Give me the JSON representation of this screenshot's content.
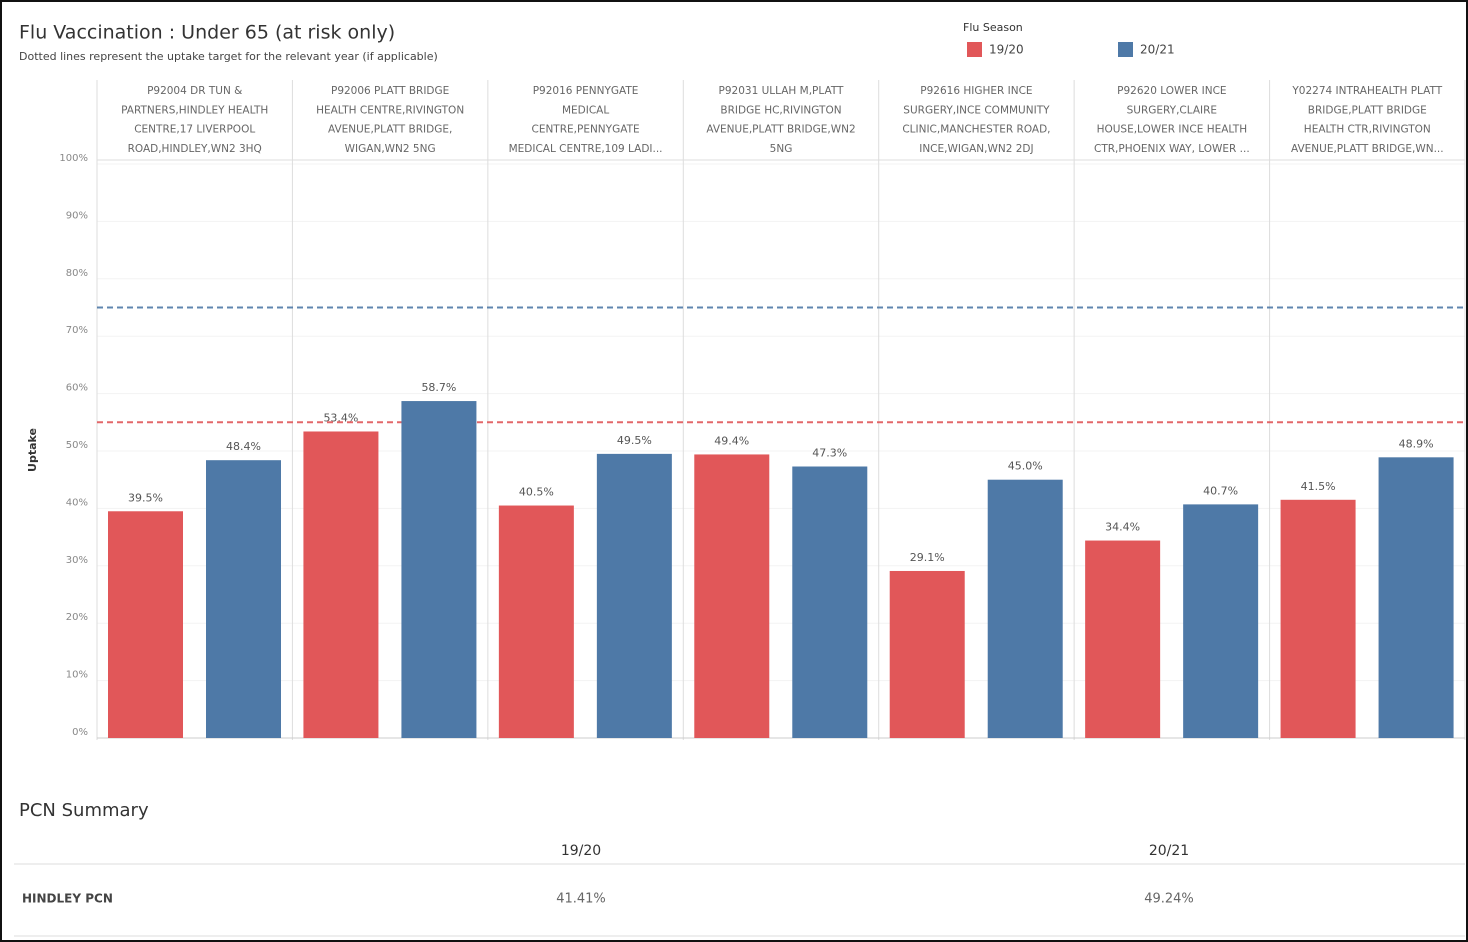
{
  "chart_data": {
    "type": "bar",
    "title": "Flu Vaccination : Under 65 (at risk only)",
    "subtitle": "Dotted lines represent the uptake target for the relevant year (if applicable)",
    "legend_title": "Flu Season",
    "y_label": "Uptake",
    "categories": [
      [
        "P92004 DR TUN &",
        "PARTNERS,HINDLEY HEALTH",
        "CENTRE,17 LIVERPOOL",
        "ROAD,HINDLEY,WN2 3HQ"
      ],
      [
        "P92006 PLATT BRIDGE",
        "HEALTH CENTRE,RIVINGTON",
        "AVENUE,PLATT BRIDGE,",
        "WIGAN,WN2 5NG"
      ],
      [
        "P92016 PENNYGATE",
        "MEDICAL",
        "CENTRE,PENNYGATE",
        "MEDICAL CENTRE,109 LADI..."
      ],
      [
        "P92031 ULLAH M,PLATT",
        "BRIDGE HC,RIVINGTON",
        "AVENUE,PLATT BRIDGE,WN2",
        "5NG"
      ],
      [
        "P92616 HIGHER INCE",
        "SURGERY,INCE COMMUNITY",
        "CLINIC,MANCHESTER ROAD,",
        "INCE,WIGAN,WN2 2DJ"
      ],
      [
        "P92620 LOWER INCE",
        "SURGERY,CLAIRE",
        "HOUSE,LOWER INCE HEALTH",
        "CTR,PHOENIX WAY, LOWER ..."
      ],
      [
        "Y02274 INTRAHEALTH PLATT",
        "BRIDGE,PLATT BRIDGE",
        "HEALTH CTR,RIVINGTON",
        "AVENUE,PLATT BRIDGE,WN..."
      ]
    ],
    "series": [
      {
        "name": "19/20",
        "color": "#e15759",
        "target": 55,
        "values": [
          39.5,
          53.4,
          40.5,
          49.4,
          29.1,
          34.4,
          41.5
        ],
        "value_labels": [
          "39.5%",
          "53.4%",
          "40.5%",
          "49.4%",
          "29.1%",
          "34.4%",
          "41.5%"
        ]
      },
      {
        "name": "20/21",
        "color": "#4e79a7",
        "target": 75,
        "values": [
          48.4,
          58.7,
          49.5,
          47.3,
          45.0,
          40.7,
          48.9
        ],
        "value_labels": [
          "48.4%",
          "58.7%",
          "49.5%",
          "47.3%",
          "45.0%",
          "40.7%",
          "48.9%"
        ]
      }
    ],
    "ylim": [
      0,
      100
    ],
    "yticks": [
      {
        "value": 0,
        "label": "0%"
      },
      {
        "value": 10,
        "label": "10%"
      },
      {
        "value": 20,
        "label": "20%"
      },
      {
        "value": 30,
        "label": "30%"
      },
      {
        "value": 40,
        "label": "40%"
      },
      {
        "value": 50,
        "label": "50%"
      },
      {
        "value": 60,
        "label": "60%"
      },
      {
        "value": 70,
        "label": "70%"
      },
      {
        "value": 80,
        "label": "80%"
      },
      {
        "value": 90,
        "label": "90%"
      },
      {
        "value": 100,
        "label": "100%"
      }
    ],
    "grid": true
  },
  "summary": {
    "title": "PCN Summary",
    "columns": [
      "19/20",
      "20/21"
    ],
    "rows": [
      [
        "HINDLEY PCN",
        "41.41%",
        "49.24%"
      ]
    ]
  }
}
